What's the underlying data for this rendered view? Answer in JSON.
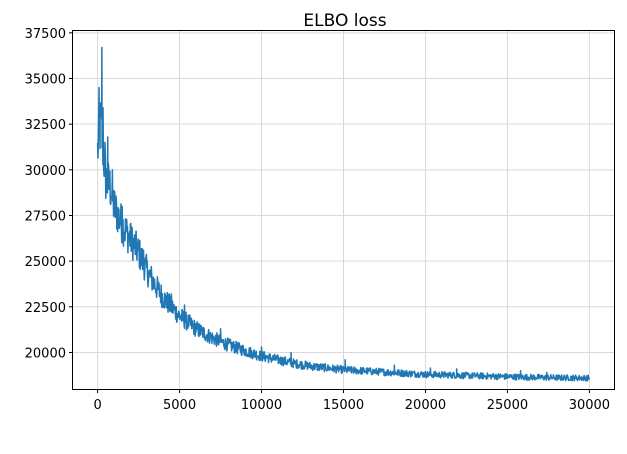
{
  "chart_data": {
    "type": "line",
    "title": "ELBO loss",
    "xlabel": "",
    "ylabel": "",
    "xlim": [
      -1500,
      31500
    ],
    "ylim": [
      18000,
      37600
    ],
    "grid": true,
    "xticks": [
      0,
      5000,
      10000,
      15000,
      20000,
      25000,
      30000
    ],
    "yticks": [
      20000,
      22500,
      25000,
      27500,
      30000,
      32500,
      35000,
      37500
    ],
    "series": [
      {
        "color": "#1f77b4",
        "trend": [
          [
            0,
            31000
          ],
          [
            100,
            32000
          ],
          [
            200,
            32500
          ],
          [
            300,
            31500
          ],
          [
            500,
            29500
          ],
          [
            800,
            29000
          ],
          [
            1000,
            28000
          ],
          [
            1500,
            27000
          ],
          [
            2000,
            26200
          ],
          [
            2500,
            25500
          ],
          [
            3000,
            24500
          ],
          [
            3500,
            23700
          ],
          [
            4000,
            23000
          ],
          [
            4500,
            22500
          ],
          [
            5000,
            22000
          ],
          [
            6000,
            21300
          ],
          [
            7000,
            20800
          ],
          [
            8000,
            20400
          ],
          [
            9000,
            20100
          ],
          [
            10000,
            19800
          ],
          [
            11000,
            19600
          ],
          [
            12000,
            19400
          ],
          [
            13000,
            19250
          ],
          [
            14000,
            19150
          ],
          [
            15000,
            19050
          ],
          [
            16000,
            19000
          ],
          [
            17000,
            18950
          ],
          [
            18000,
            18900
          ],
          [
            19000,
            18850
          ],
          [
            20000,
            18800
          ],
          [
            22000,
            18750
          ],
          [
            24000,
            18700
          ],
          [
            26000,
            18650
          ],
          [
            28000,
            18620
          ],
          [
            30000,
            18600
          ]
        ],
        "spikes": [
          [
            90,
            34500
          ],
          [
            150,
            33000
          ],
          [
            260,
            36700
          ],
          [
            330,
            33400
          ],
          [
            450,
            31500
          ],
          [
            620,
            31800
          ],
          [
            900,
            30000
          ],
          [
            1500,
            28000
          ],
          [
            2000,
            27000
          ],
          [
            2800,
            25600
          ],
          [
            4500,
            23200
          ],
          [
            5300,
            22600
          ],
          [
            7500,
            21300
          ],
          [
            10000,
            20300
          ],
          [
            11800,
            20000
          ],
          [
            15100,
            19600
          ],
          [
            18100,
            19300
          ],
          [
            20300,
            19150
          ],
          [
            21900,
            19100
          ],
          [
            25800,
            19000
          ],
          [
            27400,
            18900
          ]
        ]
      }
    ]
  }
}
